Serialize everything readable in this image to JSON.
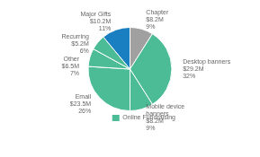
{
  "chart_data": {
    "type": "pie",
    "categories": [
      "Chapter\n$8.2M\n9%",
      "Desktop banners\n$29.2M\n32%",
      "Mobile device\nbanners\n$8.2M\n9%",
      "Email\n$23.5M\n26%",
      "Other\n$6.5M\n7%",
      "Recurring\n$5.2M\n6%",
      "Major Gifts\n$10.2M\n11%"
    ],
    "series": [
      {
        "name": "Online Fundraising",
        "color": "#4cbc96",
        "colors": [
          "#a0a0a0",
          "#4cbc96",
          "#4cbc96",
          "#4cbc96",
          "#4cbc96",
          "#4cbc96",
          "#1a7fc0"
        ],
        "values": [
          9,
          32,
          9,
          26,
          7,
          6,
          11
        ]
      }
    ],
    "legend": "lower right"
  }
}
